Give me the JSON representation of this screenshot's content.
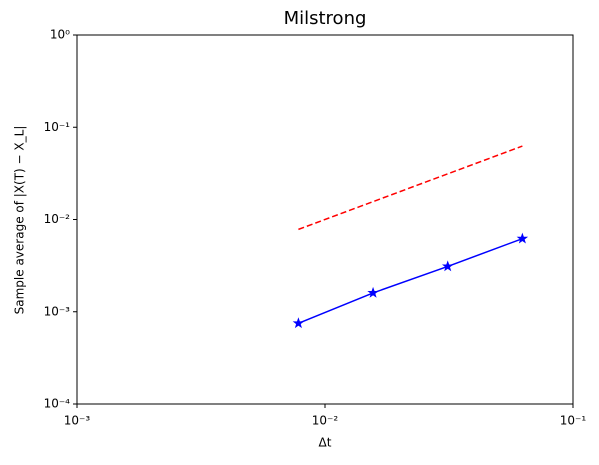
{
  "chart_data": {
    "type": "line",
    "title": "Milstrong",
    "xlabel": "Δt",
    "ylabel": "Sample average of |X(T) − X_L|",
    "xscale": "log",
    "yscale": "log",
    "xlim": [
      0.001,
      0.1
    ],
    "ylim": [
      0.0001,
      1
    ],
    "xticks": [
      {
        "value": 0.001,
        "label": "10⁻³"
      },
      {
        "value": 0.01,
        "label": "10⁻²"
      },
      {
        "value": 0.1,
        "label": "10⁻¹"
      }
    ],
    "yticks": [
      {
        "value": 0.0001,
        "label": "10⁻⁴"
      },
      {
        "value": 0.001,
        "label": "10⁻³"
      },
      {
        "value": 0.01,
        "label": "10⁻²"
      },
      {
        "value": 0.1,
        "label": "10⁻¹"
      },
      {
        "value": 1,
        "label": "10⁰"
      }
    ],
    "x": [
      0.0078125,
      0.015625,
      0.03125,
      0.0625
    ],
    "series": [
      {
        "color": "#0000ff",
        "linestyle": "solid",
        "marker": "star",
        "values": [
          0.00075,
          0.0016,
          0.0031,
          0.0062
        ]
      },
      {
        "color": "#ff0000",
        "linestyle": "dashed",
        "marker": "none",
        "values": [
          0.0078125,
          null,
          null,
          0.0625
        ]
      }
    ]
  }
}
